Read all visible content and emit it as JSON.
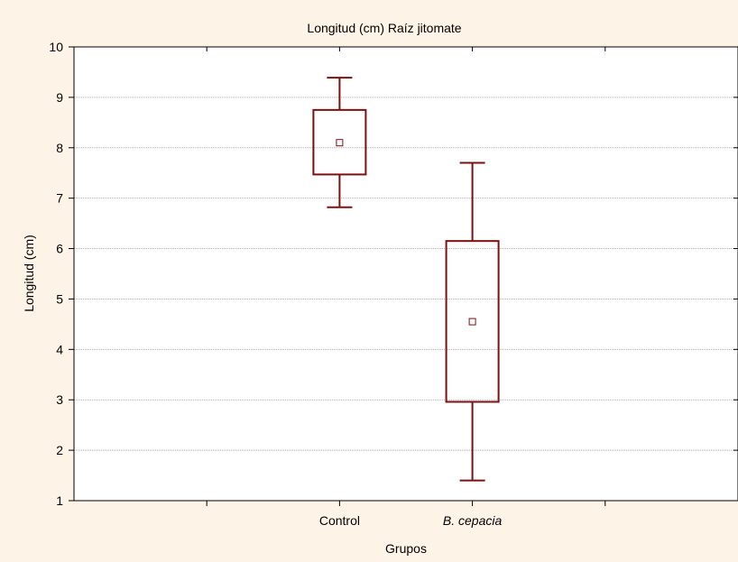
{
  "chart_data": {
    "type": "box",
    "title": "Longitud (cm) Raíz jitomate",
    "xlabel": "Grupos",
    "ylabel": "Longitud (cm)",
    "ylim": [
      1,
      10
    ],
    "yticks": [
      1,
      2,
      3,
      4,
      5,
      6,
      7,
      8,
      9,
      10
    ],
    "grid": true,
    "categories": [
      "Control",
      "B. cepacia"
    ],
    "category_italic": [
      false,
      true
    ],
    "boxes": [
      {
        "category": "Control",
        "whisker_low": 6.82,
        "q1": 7.47,
        "center": 8.1,
        "q3": 8.75,
        "whisker_high": 9.39
      },
      {
        "category": "B. cepacia",
        "whisker_low": 1.4,
        "q1": 2.96,
        "center": 4.55,
        "q3": 6.15,
        "whisker_high": 7.7
      }
    ],
    "colors": {
      "box": "#7b1010",
      "background": "#fdf3e6",
      "plot": "#ffffff",
      "grid": "#b0b0b0"
    }
  }
}
